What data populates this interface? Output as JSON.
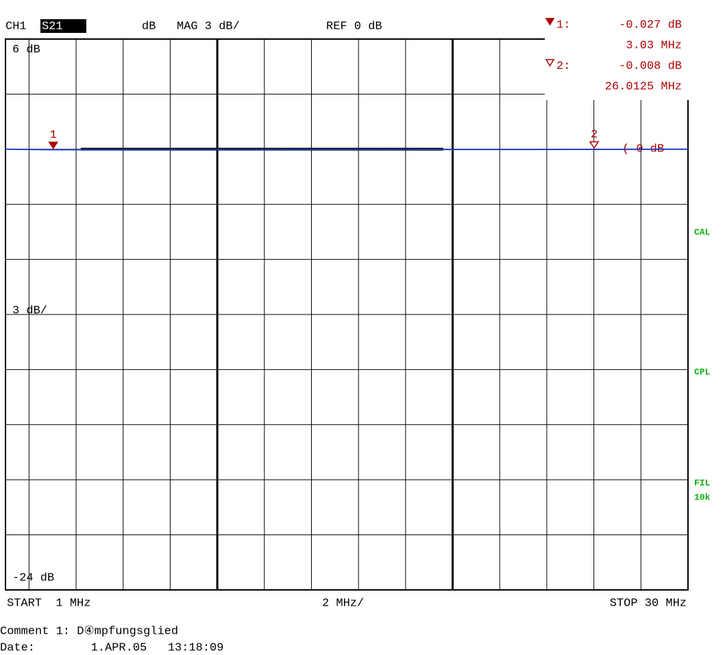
{
  "header": {
    "channel": "CH1",
    "parameter": "S21",
    "unit": "dB",
    "format": "MAG 3 dB/",
    "reference": "REF 0 dB"
  },
  "markers": [
    {
      "label": "1:",
      "number": "1",
      "x": 3.03,
      "value": -0.027,
      "value_label": "-0.027 dB",
      "x_label": "3.03 MHz",
      "color": "#b00000",
      "filled": true
    },
    {
      "label": "2:",
      "number": "2",
      "x": 26.0125,
      "value": -0.008,
      "value_label": "-0.008 dB",
      "x_label": "26.0125 MHz",
      "color": "#b00000",
      "filled": false
    }
  ],
  "reference_marker": "( 0 dB",
  "scale_labels": {
    "top": "6 dB",
    "middle": "3 dB/",
    "bottom": "-24 dB"
  },
  "side_labels": [
    "CAL",
    "CPL",
    "FIL",
    "10k"
  ],
  "footer": {
    "start": "START  1 MHz",
    "span": "2 MHz/",
    "stop": "STOP 30 MHz"
  },
  "comment": "Comment 1: D④mpfungsglied",
  "date": "Date:        1.APR.05   13:18:09",
  "chart_data": {
    "type": "line",
    "xlim": [
      1,
      30
    ],
    "ylim": [
      -24,
      6
    ],
    "xgrid": [
      2,
      4,
      6,
      8,
      10,
      12,
      14,
      16,
      18,
      20,
      22,
      24,
      26,
      28
    ],
    "xgrid_major": [
      10,
      20
    ],
    "ygrid": [
      3,
      0,
      -3,
      -6,
      -9,
      -12,
      -15,
      -18,
      -21
    ],
    "series": [
      {
        "color": "#000000",
        "x": [
          4.2,
          19.6
        ],
        "values": [
          0,
          0
        ]
      },
      {
        "color": "#2040c0",
        "x": [
          1,
          3.03,
          26.0125,
          30
        ],
        "values": [
          0,
          -0.027,
          -0.008,
          0
        ]
      }
    ]
  }
}
